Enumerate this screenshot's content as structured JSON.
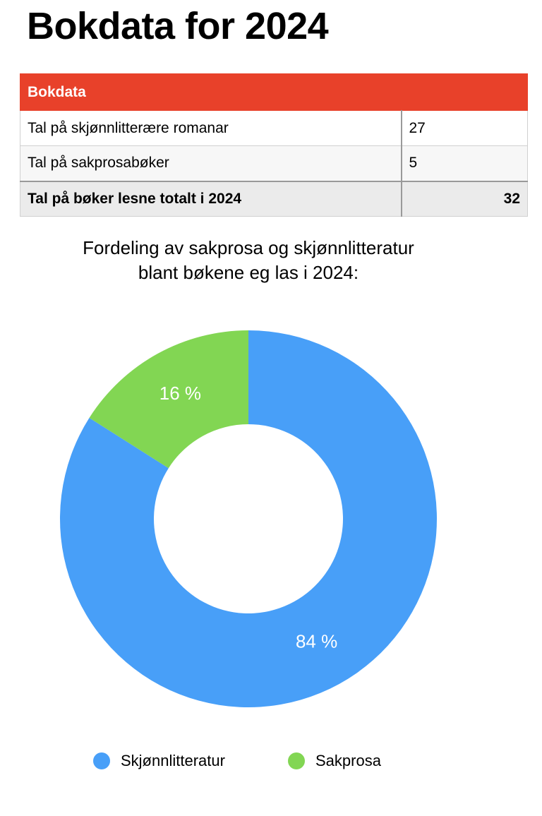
{
  "header": {
    "title": "Bokdata for 2024"
  },
  "table": {
    "header": "Bokdata",
    "rows": [
      [
        "Tal på skjønnlitterære romanar",
        27
      ],
      [
        "Tal på sakprosabøker",
        5
      ]
    ],
    "total": [
      "Tal på bøker lesne totalt i 2024",
      32
    ]
  },
  "chart_data": {
    "type": "donut",
    "title": "Fordeling av sakprosa og skjønnlitteratur blant bøkene eg las i 2024:",
    "categories": [
      "Skjønnlitteratur",
      "Sakprosa"
    ],
    "values": [
      84,
      16
    ],
    "value_labels": [
      "84 %",
      "16 %"
    ],
    "colors": [
      "#489ff8",
      "#82d653"
    ]
  }
}
